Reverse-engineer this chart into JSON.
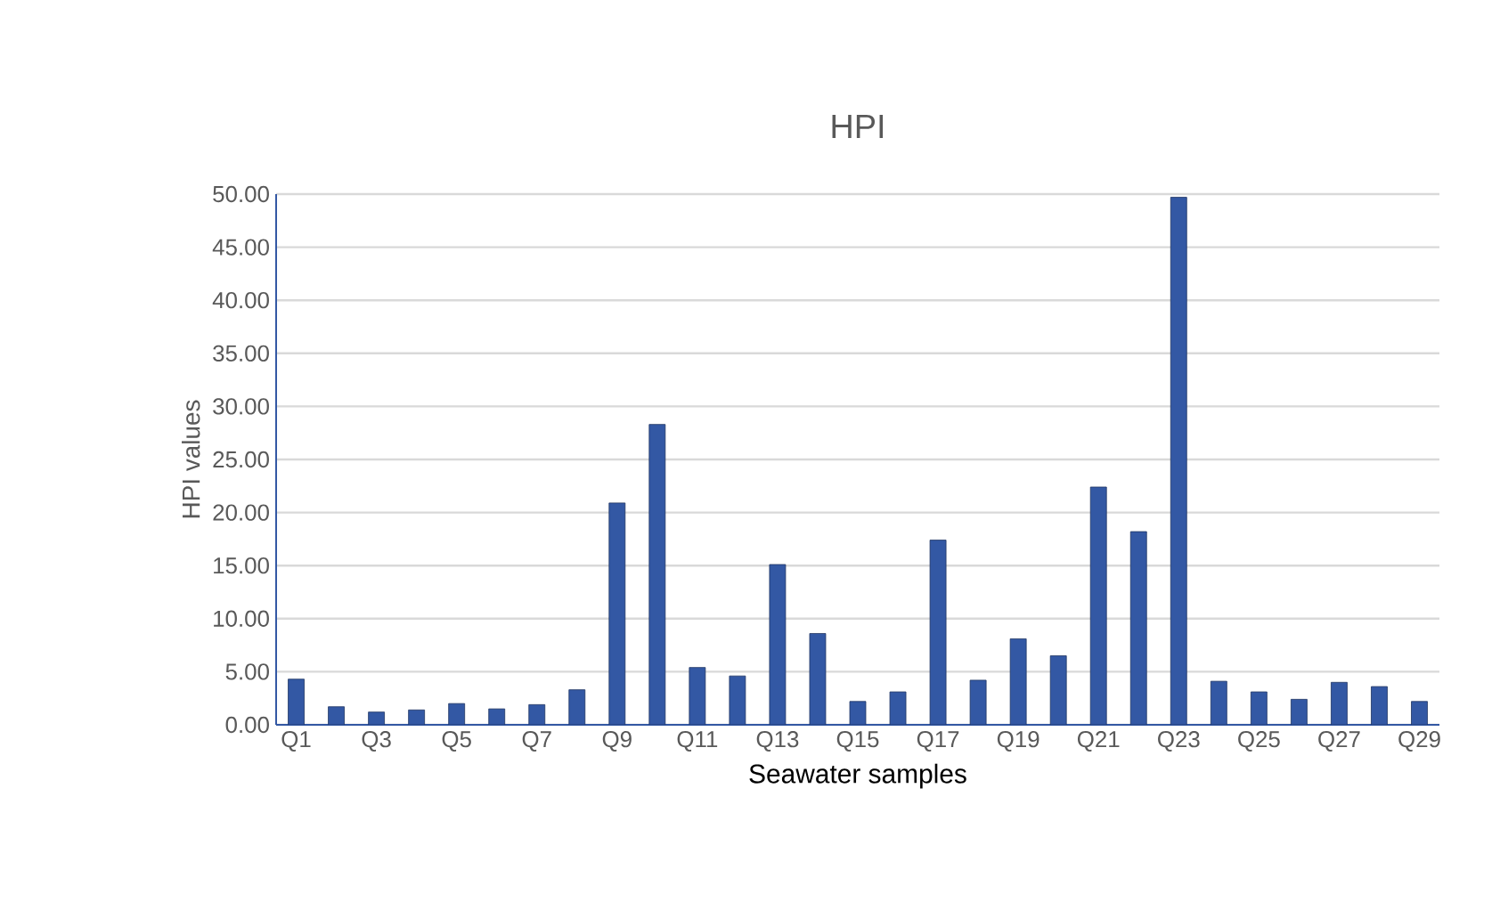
{
  "chart_data": {
    "type": "bar",
    "title": "HPI",
    "xlabel": "Seawater samples",
    "ylabel": "HPI values",
    "categories": [
      "Q1",
      null,
      "Q3",
      null,
      "Q5",
      null,
      "Q7",
      null,
      "Q9",
      null,
      "Q11",
      null,
      "Q13",
      null,
      "Q15",
      null,
      "Q17",
      null,
      "Q19",
      null,
      "Q21",
      null,
      "Q23",
      null,
      "Q25",
      null,
      "Q27",
      null,
      "Q29"
    ],
    "values": [
      4.3,
      1.7,
      1.2,
      1.4,
      2.0,
      1.5,
      1.9,
      3.3,
      20.9,
      28.3,
      5.4,
      4.6,
      15.1,
      8.6,
      2.2,
      3.1,
      17.4,
      4.2,
      8.1,
      6.5,
      22.4,
      18.2,
      49.7,
      4.1,
      3.1,
      2.4,
      4.0,
      3.6,
      2.2
    ],
    "color": "#3358a4",
    "ylim": [
      0,
      50
    ],
    "yticks": [
      {
        "value": 0,
        "label": "0.00"
      },
      {
        "value": 5,
        "label": "5.00"
      },
      {
        "value": 10,
        "label": "10.00"
      },
      {
        "value": 15,
        "label": "15.00"
      },
      {
        "value": 20,
        "label": "20.00"
      },
      {
        "value": 25,
        "label": "25.00"
      },
      {
        "value": 30,
        "label": "30.00"
      },
      {
        "value": 35,
        "label": "35.00"
      },
      {
        "value": 40,
        "label": "40.00"
      },
      {
        "value": 45,
        "label": "45.00"
      },
      {
        "value": 50,
        "label": "50.00"
      }
    ],
    "grid": "y"
  }
}
